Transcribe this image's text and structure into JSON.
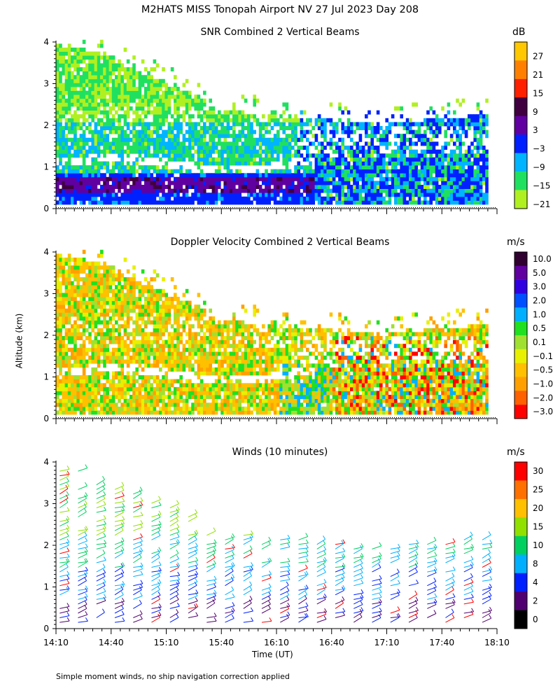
{
  "figure": {
    "title": "M2HATS MISS Tonopah Airport NV  27 Jul 2023 Day 208",
    "ylabel": "Altitude (km)",
    "xlabel": "Time (UT)",
    "footnote": "Simple moment winds, no ship navigation correction applied"
  },
  "chart_data": [
    {
      "type": "heatmap",
      "title": "SNR Combined 2 Vertical Beams",
      "units": "dB",
      "y_ticks": [
        "0",
        "1",
        "2",
        "3",
        "4"
      ],
      "ylim": [
        0,
        4
      ],
      "colorbar_labels": [
        "27",
        "21",
        "15",
        "9",
        "3",
        "−3",
        "−9",
        "−15",
        "−21"
      ],
      "colorbar_colors": [
        "#ffc800",
        "#ff8000",
        "#ff2000",
        "#400040",
        "#6000a0",
        "#0020ff",
        "#00b4ff",
        "#20e060",
        "#b0f020"
      ]
    },
    {
      "type": "heatmap",
      "title": "Doppler Velocity Combined 2 Vertical Beams",
      "units": "m/s",
      "y_ticks": [
        "0",
        "1",
        "2",
        "3",
        "4"
      ],
      "ylim": [
        0,
        4
      ],
      "colorbar_labels": [
        "10.0",
        "5.0",
        "3.0",
        "2.0",
        "1.0",
        "0.5",
        "0.1",
        "−0.1",
        "−0.5",
        "−1.0",
        "−2.0",
        "−3.0"
      ],
      "colorbar_colors": [
        "#300030",
        "#6000a0",
        "#3000e0",
        "#0050ff",
        "#00b0ff",
        "#20e020",
        "#a0e030",
        "#e8f000",
        "#ffc000",
        "#ffa000",
        "#ff6000",
        "#ff0000"
      ]
    },
    {
      "type": "scatter",
      "title": "Winds (10 minutes)",
      "units": "m/s",
      "y_ticks": [
        "0",
        "1",
        "2",
        "3",
        "4"
      ],
      "ylim": [
        0,
        4
      ],
      "x_ticks": [
        "14:10",
        "14:40",
        "15:10",
        "15:40",
        "16:10",
        "16:40",
        "17:10",
        "17:40",
        "18:10"
      ],
      "colorbar_labels": [
        "30",
        "25",
        "20",
        "15",
        "10",
        "8",
        "4",
        "2",
        "0"
      ],
      "colorbar_colors": [
        "#ff0000",
        "#ff7000",
        "#ffc000",
        "#90e000",
        "#00d060",
        "#00b0ff",
        "#0020ff",
        "#500070",
        "#000000"
      ]
    }
  ]
}
